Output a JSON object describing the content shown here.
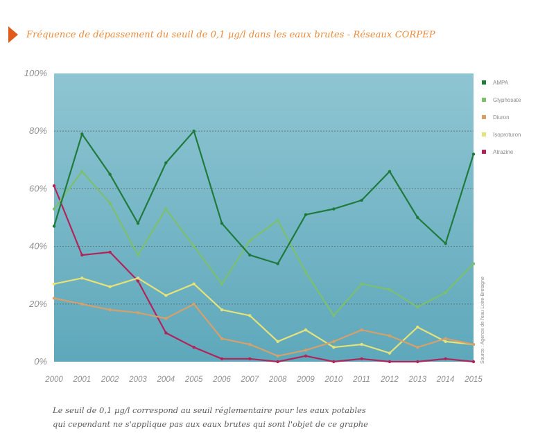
{
  "title": "Fréquence de dépassement du seuil de 0,1 µg/l dans les eaux brutes - Réseaux CORPEP",
  "caption": [
    "Le seuil de 0,1 µg/l correspond au seuil réglementaire pour les eaux potables",
    "qui cependant ne s'applique pas aux eaux brutes qui sont l'objet de ce graphe"
  ],
  "source": "Source : Agence de l'eau Loire-Bretagne",
  "colors": {
    "plot_background_top": "#8fc5d2",
    "plot_background_bottom": "#5ea8bb",
    "gridline": "#555555",
    "title_arrow": "#e05a1c",
    "title_text": "#e98a3c"
  },
  "chart_data": {
    "type": "line",
    "x": [
      "2000",
      "2001",
      "2002",
      "2003",
      "2004",
      "2005",
      "2006",
      "2007",
      "2008",
      "2009",
      "2010",
      "2011",
      "2012",
      "2013",
      "2014",
      "2015"
    ],
    "x_tick_labels": [
      "2000",
      "2001",
      "2002",
      "2003",
      "2004",
      "2005",
      "2006",
      "2007",
      "2008",
      "2009",
      "2010",
      "2011",
      "2012",
      "2013",
      "2014",
      "2015"
    ],
    "y_tick_labels": [
      "0%",
      "20%",
      "40%",
      "60%",
      "80%",
      "100%"
    ],
    "ylim": [
      0,
      100
    ],
    "y_unit": "%",
    "grid": true,
    "legend_position": "right",
    "series": [
      {
        "name": "AMPA",
        "color": "#1f7a3c",
        "values": [
          47,
          79,
          65,
          48,
          69,
          80,
          48,
          37,
          34,
          51,
          53,
          56,
          66,
          50,
          41,
          72
        ]
      },
      {
        "name": "Glyphosate",
        "color": "#7cbf6e",
        "values": [
          53,
          66,
          55,
          37,
          53,
          40,
          27,
          42,
          49,
          31,
          16,
          27,
          25,
          19,
          24,
          34
        ]
      },
      {
        "name": "Diuron",
        "color": "#d6a06a",
        "values": [
          22,
          20,
          18,
          17,
          15,
          20,
          8,
          6,
          2,
          4,
          7,
          11,
          9,
          5,
          8,
          6
        ]
      },
      {
        "name": "Isoproturon",
        "color": "#e6e27a",
        "values": [
          27,
          29,
          26,
          29,
          23,
          27,
          18,
          16,
          7,
          11,
          5,
          6,
          3,
          12,
          7,
          6
        ]
      },
      {
        "name": "Atrazine",
        "color": "#b0245a",
        "values": [
          61,
          37,
          38,
          28,
          10,
          5,
          1,
          1,
          0,
          2,
          0,
          1,
          0,
          0,
          1,
          0
        ]
      }
    ]
  }
}
